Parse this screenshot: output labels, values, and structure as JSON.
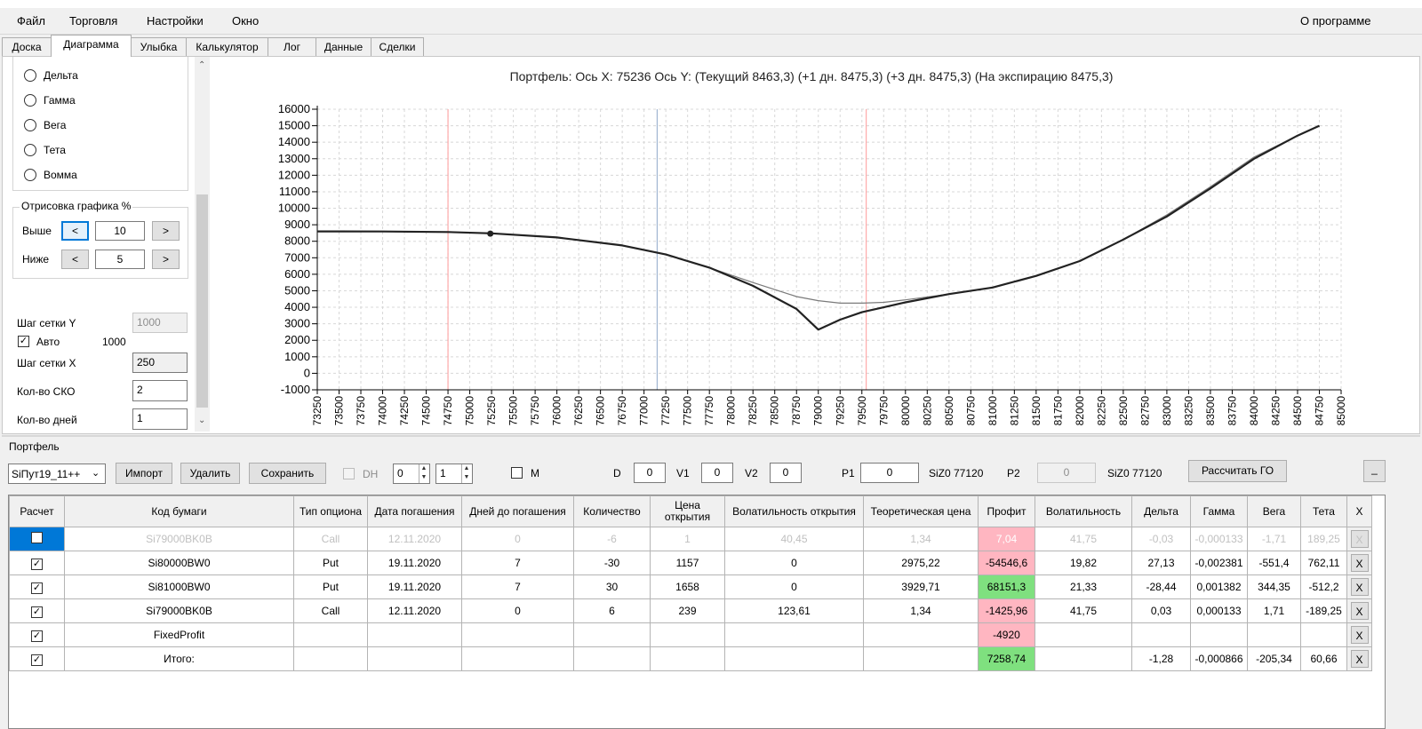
{
  "menu": {
    "file": "Файл",
    "trade": "Торговля",
    "settings": "Настройки",
    "window": "Окно",
    "about": "О программе"
  },
  "tabs": [
    "Доска",
    "Диаграмма",
    "Улыбка",
    "Калькулятор",
    "Лог",
    "Данные",
    "Сделки"
  ],
  "left": {
    "radios": [
      "Дельта",
      "Гамма",
      "Вега",
      "Тета",
      "Вомма"
    ],
    "draw_group": "Отрисовка графика %",
    "above_label": "Выше",
    "above_value": "10",
    "below_label": "Ниже",
    "below_value": "5",
    "btn_left": "<",
    "btn_right": ">",
    "grid_y_label": "Шаг сетки Y",
    "grid_y_value": "1000",
    "auto_label": "Авто",
    "auto_value": "1000",
    "grid_x_label": "Шаг сетки X",
    "grid_x_value": "250",
    "sko_label": "Кол-во СКО",
    "sko_value": "2",
    "days_label": "Кол-во дней",
    "days_value": "1"
  },
  "chart_title": "Портфель: Ось X: 75236 Ось Y:  (Текущий 8463,3)  (+1 дн. 8475,3)  (+3 дн. 8475,3)  (На экспирацию 8475,3)",
  "chart_data": {
    "type": "line",
    "xlim": [
      73250,
      85000
    ],
    "ylim": [
      -1000,
      16000
    ],
    "x_ticks": [
      73250,
      73500,
      73750,
      74000,
      74250,
      74500,
      74750,
      75000,
      75250,
      75500,
      75750,
      76000,
      76250,
      76500,
      76750,
      77000,
      77250,
      77500,
      77750,
      78000,
      78250,
      78500,
      78750,
      79000,
      79250,
      79500,
      79750,
      80000,
      80250,
      80500,
      80750,
      81000,
      81250,
      81500,
      81750,
      82000,
      82250,
      82500,
      82750,
      83000,
      83250,
      83500,
      83750,
      84000,
      84250,
      84500,
      84750,
      85000
    ],
    "y_ticks": [
      -1000,
      0,
      1000,
      2000,
      3000,
      4000,
      5000,
      6000,
      7000,
      8000,
      9000,
      10000,
      11000,
      12000,
      13000,
      14000,
      15000,
      16000
    ],
    "vertical_lines": [
      {
        "x": 74750,
        "color": "#ff9999"
      },
      {
        "x": 77150,
        "color": "#8fa8c8"
      },
      {
        "x": 79550,
        "color": "#ff9999"
      }
    ],
    "current_point": {
      "x": 75236,
      "y": 8463.3
    },
    "grid": true,
    "series": [
      {
        "color": "#7a7a7a",
        "x": [
          73250,
          74000,
          74750,
          75250,
          76000,
          76750,
          77250,
          77750,
          78250,
          78750,
          79000,
          79250,
          79500,
          79750,
          80000,
          80500,
          81000,
          81500,
          82000,
          82500,
          83000,
          83500,
          84000,
          84500,
          84750
        ],
        "y": [
          8600,
          8590,
          8560,
          8480,
          8230,
          7750,
          7200,
          6400,
          5500,
          4650,
          4400,
          4250,
          4250,
          4300,
          4450,
          4800,
          5200,
          5900,
          6800,
          8100,
          9600,
          11300,
          13100,
          14400,
          15000
        ]
      },
      {
        "color": "#222222",
        "x": [
          73250,
          74000,
          74750,
          75250,
          76000,
          76750,
          77250,
          77750,
          78250,
          78750,
          79000,
          79250,
          79500,
          79750,
          80000,
          80500,
          81000,
          81500,
          82000,
          82500,
          83000,
          83500,
          84000,
          84500,
          84750
        ],
        "y": [
          8600,
          8590,
          8560,
          8480,
          8230,
          7750,
          7200,
          6400,
          5300,
          3900,
          2650,
          3250,
          3700,
          4000,
          4300,
          4800,
          5200,
          5900,
          6800,
          8100,
          9500,
          11200,
          13000,
          14400,
          15000
        ]
      }
    ]
  },
  "portfolio": {
    "title": "Портфель",
    "select_value": "SiПут19_11++",
    "import": "Импорт",
    "delete": "Удалить",
    "save": "Сохранить",
    "dh": "DH",
    "spin1": "0",
    "spin2": "1",
    "m": "M",
    "d_label": "D",
    "d_value": "0",
    "v1_label": "V1",
    "v1_value": "0",
    "v2_label": "V2",
    "v2_value": "0",
    "p1_label": "P1",
    "p1_value": "0",
    "p1_sec": "SiZ0 77120",
    "p2_label": "P2",
    "p2_value": "0",
    "p2_sec": "SiZ0 77120",
    "calc_go": "Рассчитать ГО",
    "min_btn": "_"
  },
  "table": {
    "headers": [
      "Расчет",
      "Код бумаги",
      "Тип опциона",
      "Дата погашения",
      "Дней до погашения",
      "Количество",
      "Цена открытия",
      "Волатильность открытия",
      "Теоретическая цена",
      "Профит",
      "Волатильность",
      "Дельта",
      "Гамма",
      "Вега",
      "Тета",
      "X"
    ],
    "rows": [
      {
        "check": "",
        "code": "Si79000BK0B",
        "type": "Call",
        "date": "12.11.2020",
        "days": "0",
        "qty": "-6",
        "price": "1",
        "volo": "40,45",
        "theo": "1,34",
        "profit": "7,04",
        "vol": "41,75",
        "delta": "-0,03",
        "gamma": "-0,000133",
        "vega": "-1,71",
        "theta": "189,25",
        "x": "X"
      },
      {
        "check": "✓",
        "code": "Si80000BW0",
        "type": "Put",
        "date": "19.11.2020",
        "days": "7",
        "qty": "-30",
        "price": "1157",
        "volo": "0",
        "theo": "2975,22",
        "profit": "-54546,6",
        "vol": "19,82",
        "delta": "27,13",
        "gamma": "-0,002381",
        "vega": "-551,4",
        "theta": "762,11",
        "x": "X"
      },
      {
        "check": "✓",
        "code": "Si81000BW0",
        "type": "Put",
        "date": "19.11.2020",
        "days": "7",
        "qty": "30",
        "price": "1658",
        "volo": "0",
        "theo": "3929,71",
        "profit": "68151,3",
        "vol": "21,33",
        "delta": "-28,44",
        "gamma": "0,001382",
        "vega": "344,35",
        "theta": "-512,2",
        "x": "X"
      },
      {
        "check": "✓",
        "code": "Si79000BK0B",
        "type": "Call",
        "date": "12.11.2020",
        "days": "0",
        "qty": "6",
        "price": "239",
        "volo": "123,61",
        "theo": "1,34",
        "profit": "-1425,96",
        "vol": "41,75",
        "delta": "0,03",
        "gamma": "0,000133",
        "vega": "1,71",
        "theta": "-189,25",
        "x": "X"
      },
      {
        "check": "✓",
        "code": "FixedProfit",
        "type": "",
        "date": "",
        "days": "",
        "qty": "",
        "price": "",
        "volo": "",
        "theo": "",
        "profit": "-4920",
        "vol": "",
        "delta": "",
        "gamma": "",
        "vega": "",
        "theta": "",
        "x": "X"
      },
      {
        "check": "✓",
        "code": "Итого:",
        "type": "",
        "date": "",
        "days": "",
        "qty": "",
        "price": "",
        "volo": "",
        "theo": "",
        "profit": "7258,74",
        "vol": "",
        "delta": "-1,28",
        "gamma": "-0,000866",
        "vega": "-205,34",
        "theta": "60,66",
        "x": "X"
      }
    ]
  },
  "colors": {
    "profit_negative": "#ffb6c1",
    "profit_positive": "#7fe07f",
    "selection": "#0078d7"
  }
}
